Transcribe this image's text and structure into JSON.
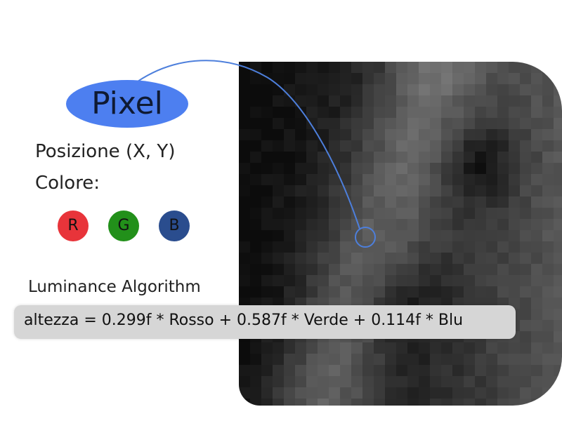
{
  "bubble": {
    "title": "Pixel",
    "color": "#4d7ff0"
  },
  "labels": {
    "position": "Posizione (X, Y)",
    "color": "Colore:"
  },
  "channels": [
    {
      "letter": "R",
      "color": "#e8343a"
    },
    {
      "letter": "G",
      "color": "#22901a"
    },
    {
      "letter": "B",
      "color": "#2a4d8e"
    }
  ],
  "algorithm": {
    "heading": "Luminance Algorithm",
    "formula": "altezza = 0.299f * Rosso + 0.587f * Verde + 0.114f * Blu"
  },
  "connector_color": "#4d7fdc"
}
